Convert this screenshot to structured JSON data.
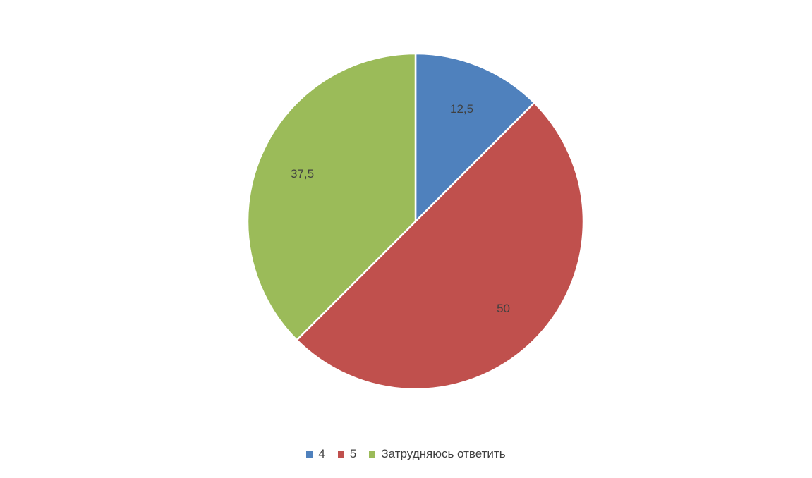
{
  "chart_data": {
    "type": "pie",
    "title": "",
    "categories": [
      "4",
      "5",
      "Затрудняюсь ответить"
    ],
    "values": [
      12.5,
      50,
      37.5
    ],
    "data_labels": [
      "12,5",
      "50",
      "37,5"
    ],
    "colors": [
      "#4f81bd",
      "#c0504d",
      "#9bbb59"
    ],
    "start_angle": "12 o'clock",
    "direction": "clockwise",
    "legend_position": "bottom"
  }
}
